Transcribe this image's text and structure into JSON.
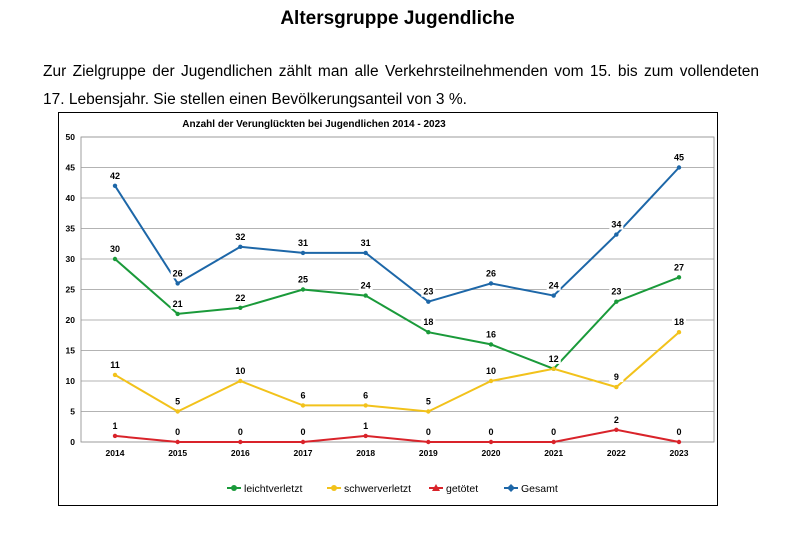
{
  "page": {
    "heading": "Altersgruppe Jugendliche",
    "intro": "Zur Zielgruppe der Jugendlichen zählt man alle Verkehrsteilnehmenden vom 15. bis zum vollendeten 17. Lebensjahr. Sie stellen einen Bevölkerungsanteil von 3 %."
  },
  "chart_data": {
    "type": "line",
    "title": "Anzahl der Verunglückten bei Jugendlichen 2014 - 2023",
    "x": [
      "2014",
      "2015",
      "2016",
      "2017",
      "2018",
      "2019",
      "2020",
      "2021",
      "2022",
      "2023"
    ],
    "ylim": [
      0,
      50
    ],
    "yticks": [
      0,
      5,
      10,
      15,
      20,
      25,
      30,
      35,
      40,
      45,
      50
    ],
    "grid": true,
    "legend_position": "bottom",
    "series": [
      {
        "name": "leichtverletzt",
        "color": "#1a9a3a",
        "values": [
          30,
          21,
          22,
          25,
          24,
          18,
          16,
          12,
          23,
          27
        ]
      },
      {
        "name": "schwerverletzt",
        "color": "#f2c21b",
        "values": [
          11,
          5,
          10,
          6,
          6,
          5,
          10,
          12,
          9,
          18
        ]
      },
      {
        "name": "getötet",
        "color": "#d9232a",
        "values": [
          1,
          0,
          0,
          0,
          1,
          0,
          0,
          0,
          2,
          0
        ]
      },
      {
        "name": "Gesamt",
        "color": "#1d67a8",
        "values": [
          42,
          26,
          32,
          31,
          31,
          23,
          26,
          24,
          34,
          45
        ]
      }
    ]
  }
}
